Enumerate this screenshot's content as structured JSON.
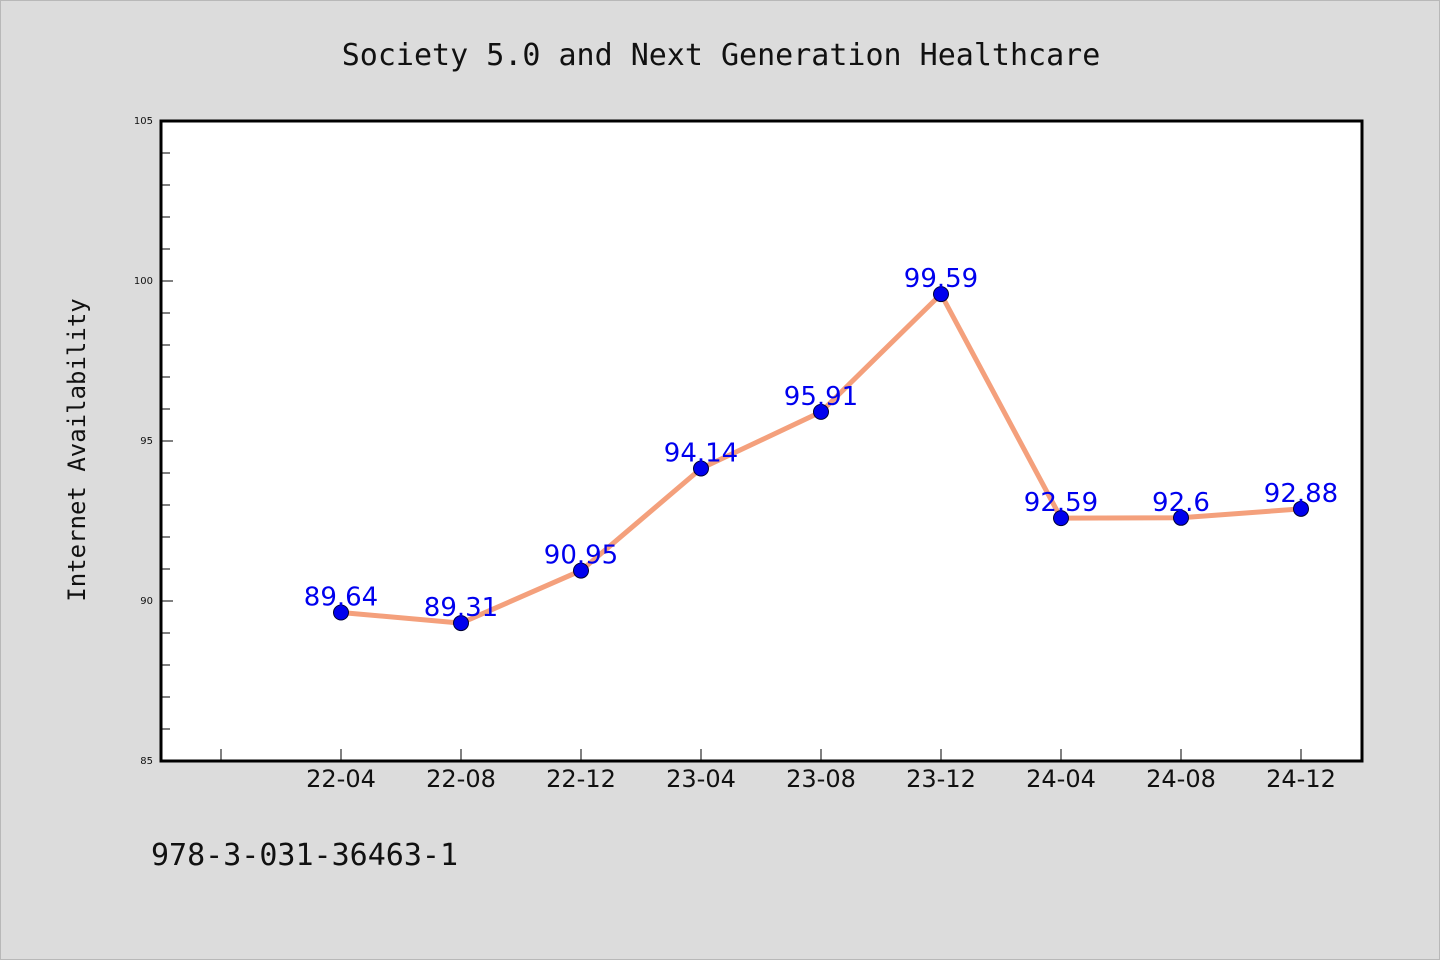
{
  "chart_data": {
    "type": "line",
    "title": "Society 5.0 and Next Generation Healthcare",
    "xlabel": "",
    "ylabel": "Internet Availability",
    "categories": [
      "22-04",
      "22-08",
      "22-12",
      "23-04",
      "23-08",
      "23-12",
      "24-04",
      "24-08",
      "24-12"
    ],
    "series": [
      {
        "values": [
          89.64,
          89.31,
          90.95,
          94.14,
          95.91,
          99.59,
          92.59,
          92.6,
          92.88
        ]
      }
    ],
    "data_labels": [
      "89.64",
      "89.31",
      "90.95",
      "94.14",
      "95.91",
      "99.59",
      "92.59",
      "92.6",
      "92.88"
    ],
    "ylim": [
      85,
      105
    ],
    "yticks": [
      "85",
      "90",
      "95",
      "100",
      "105"
    ],
    "grid": false,
    "legend": "none"
  },
  "footer": {
    "isbn": "978-3-031-36463-1"
  },
  "colors": {
    "background": "#dcdcdc",
    "plot_background": "#ffffff",
    "line": "#f4a07c",
    "marker": "#0000ee",
    "data_label": "#0000ee"
  }
}
